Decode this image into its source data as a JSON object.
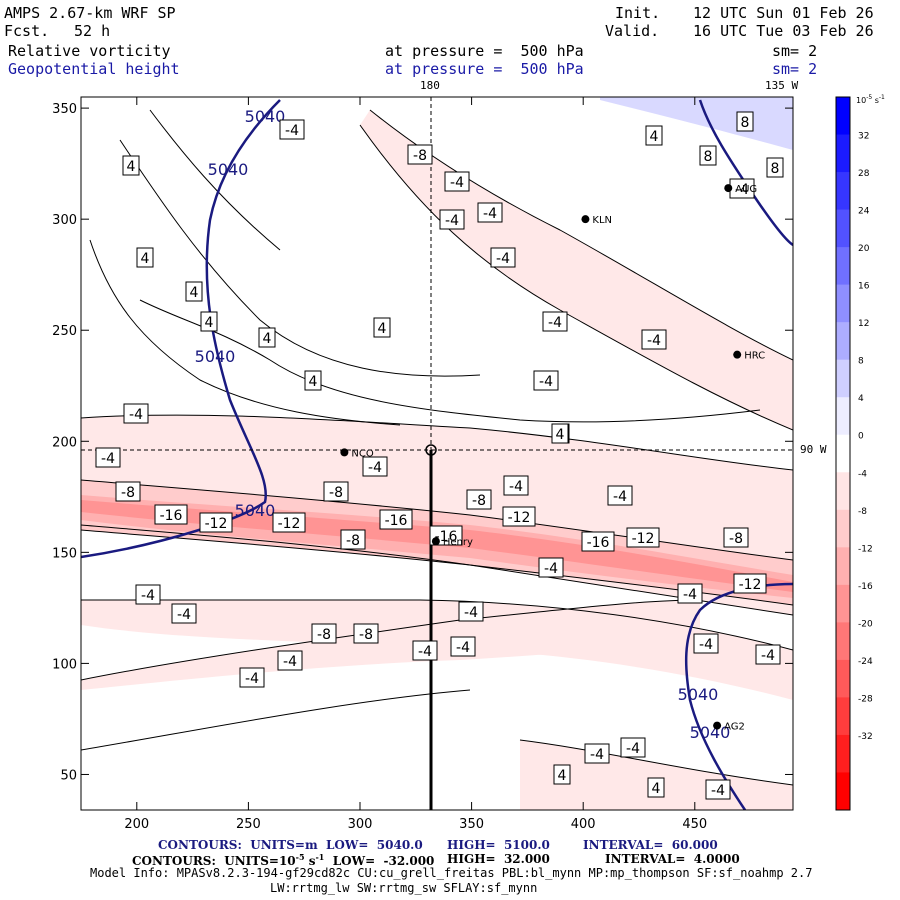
{
  "header": {
    "model": "AMPS 2.67-km WRF SP",
    "fcst_label": "Fcst.",
    "fcst_value": "52 h",
    "init_label": "Init.",
    "init_value": "12 UTC Sun 01 Feb 26",
    "valid_label": "Valid.",
    "valid_value": "16 UTC Tue 03 Feb 26",
    "field1": "Relative vorticity",
    "field2": "Geopotential height",
    "level1": "at pressure =  500 hPa",
    "level2": "at pressure =  500 hPa",
    "sm1": "sm= 2",
    "sm2": "sm= 2"
  },
  "map_labels": {
    "lon_180": "180",
    "lon_135w": "135 W",
    "lon_90w": "90 W"
  },
  "stations": [
    {
      "name": "KLN",
      "x": 401,
      "y": 300
    },
    {
      "name": "HRC",
      "x": 469,
      "y": 239
    },
    {
      "name": "NCO",
      "x": 293,
      "y": 195
    },
    {
      "name": "Henry",
      "x": 334,
      "y": 155
    },
    {
      "name": "AG2",
      "x": 460,
      "y": 72
    },
    {
      "name": "AUG",
      "x": 465,
      "y": 314
    }
  ],
  "colorbar": {
    "unit": "10",
    "unit_exp": "-5",
    "unit_rest": " s",
    "unit_exp2": "-1",
    "ticks": [
      "32",
      "28",
      "24",
      "20",
      "16",
      "12",
      "8",
      "4",
      "0",
      "-4",
      "-8",
      "-12",
      "-16",
      "-20",
      "-24",
      "-28",
      "-32"
    ],
    "colors": [
      "#0000ff",
      "#1b1bff",
      "#3636ff",
      "#5252ff",
      "#7070ff",
      "#8f8fff",
      "#adadff",
      "#cfcfff",
      "#ededff",
      "#ffffff",
      "#ffe5e5",
      "#ffcccc",
      "#ffb0b0",
      "#ff9494",
      "#ff7777",
      "#ff5a5a",
      "#ff3d3d",
      "#ff1f1f",
      "#ff0000"
    ]
  },
  "chart_data": {
    "type": "heatmap",
    "description_free": true,
    "x_ticks": [
      200,
      250,
      300,
      350,
      400,
      450
    ],
    "y_ticks": [
      50,
      100,
      150,
      200,
      250,
      300,
      350
    ],
    "xlim": [
      175,
      494
    ],
    "ylim": [
      34,
      355
    ],
    "height_contour_labels": [
      "5040",
      "5040",
      "5040",
      "5040",
      "5040"
    ],
    "vorticity_contour_labels": [
      "-4",
      "4",
      "-8",
      "-12",
      "-16",
      "8"
    ]
  },
  "footer": {
    "line1_a": "CONTOURS:  UNITS=m  LOW=  5040.0",
    "line1_b": "HIGH=  5100.0",
    "line1_c": "INTERVAL=  60.000",
    "line2_a": "CONTOURS:  UNITS=10",
    "line2_exp1": "-5",
    "line2_b": " s",
    "line2_exp2": "-1",
    "line2_c": "  LOW=  -32.000",
    "line2_d": "HIGH=  32.000",
    "line2_e": "INTERVAL=  4.0000",
    "model_info": "Model Info: MPASv8.2.3-194-gf29cd82c CU:cu_grell_freitas PBL:bl_mynn MP:mp_thompson SF:sf_noahmp 2.7",
    "model_info2": "LW:rrtmg_lw SW:rrtmg_sw SFLAY:sf_mynn"
  }
}
